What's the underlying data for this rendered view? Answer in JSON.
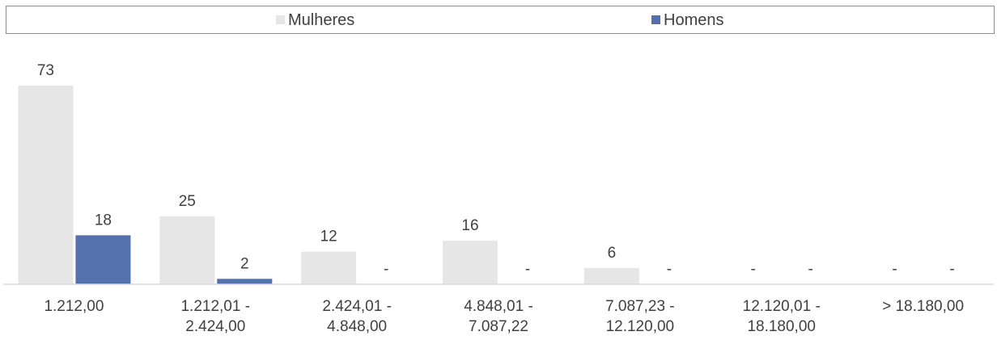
{
  "chart_data": {
    "type": "bar",
    "categories": [
      [
        "1.212,00"
      ],
      [
        "1.212,01 -",
        "2.424,00"
      ],
      [
        "2.424,01 -",
        "4.848,00"
      ],
      [
        "4.848,01 -",
        "7.087,22"
      ],
      [
        "7.087,23 -",
        "12.120,00"
      ],
      [
        "12.120,01 -",
        "18.180,00"
      ],
      [
        "> 18.180,00"
      ]
    ],
    "series": [
      {
        "name": "Mulheres",
        "color": "#e6e6e6",
        "values": [
          73,
          25,
          12,
          16,
          6,
          null,
          null
        ],
        "labels": [
          "73",
          "25",
          "12",
          "16",
          "6",
          "-",
          "-"
        ]
      },
      {
        "name": "Homens",
        "color": "#5470ad",
        "values": [
          18,
          2,
          null,
          null,
          null,
          null,
          null
        ],
        "labels": [
          "18",
          "2",
          "-",
          "-",
          "-",
          "-",
          "-"
        ]
      }
    ],
    "ylim": [
      0,
      73
    ],
    "legend_position": "top",
    "grid": false,
    "axis_color": "#d9d9d9"
  }
}
